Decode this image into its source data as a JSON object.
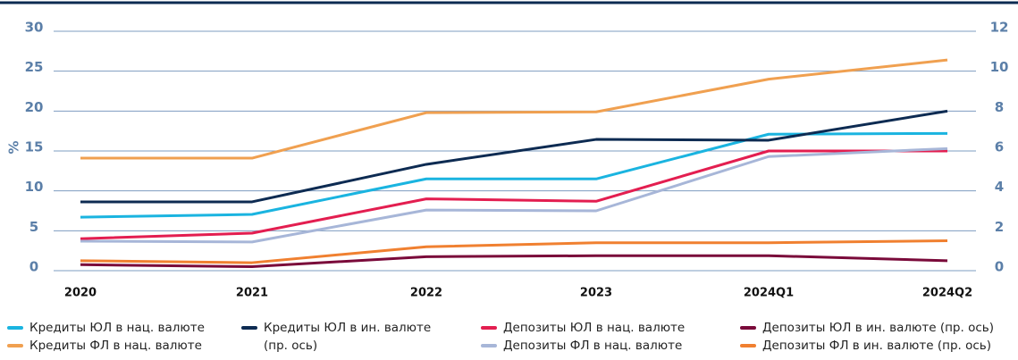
{
  "chart_data": {
    "type": "line",
    "ylabel": "%",
    "categories": [
      "2020",
      "2021",
      "2022",
      "2023",
      "2024Q1",
      "2024Q2"
    ],
    "ylim": [
      0,
      30
    ],
    "yticks": [
      0,
      5,
      10,
      15,
      20,
      25,
      30
    ],
    "y2lim": [
      0,
      12
    ],
    "y2ticks": [
      0,
      2,
      4,
      6,
      8,
      10,
      12
    ],
    "grid": true,
    "series": [
      {
        "name": "Кредиты ЮЛ в нац. валюте",
        "color": "#1ab4e0",
        "values": [
          6.7,
          7.05,
          11.5,
          11.5,
          17.1,
          17.2
        ]
      },
      {
        "name": "Кредиты ЮЛ в ин. валюте (пр. ось)",
        "color": "#0d2b52",
        "axis": "y2",
        "values": [
          3.45,
          3.45,
          5.33,
          6.58,
          6.54,
          8.0
        ]
      },
      {
        "name": "Депозиты ЮЛ в нац. валюте",
        "color": "#e31e50",
        "values": [
          4.0,
          4.7,
          9.0,
          8.7,
          15.0,
          15.0
        ]
      },
      {
        "name": "Депозиты ЮЛ в ин. валюте (пр. ось)",
        "color": "#7a0a3a",
        "axis": "y2",
        "values": [
          0.3,
          0.2,
          0.7,
          0.75,
          0.75,
          0.5
        ]
      },
      {
        "name": "Кредиты ФЛ в нац. валюте",
        "color": "#f0a050",
        "values": [
          14.1,
          14.1,
          19.8,
          19.9,
          24.0,
          26.4
        ]
      },
      {
        "name": "Депозиты ФЛ в нац. валюте",
        "color": "#a7b6d8",
        "values": [
          3.7,
          3.6,
          7.6,
          7.5,
          14.3,
          15.3
        ]
      },
      {
        "name": "Депозиты ФЛ в ин. валюте (пр. ось)",
        "color": "#f08030",
        "axis": "y2",
        "values": [
          0.5,
          0.4,
          1.2,
          1.4,
          1.4,
          1.5
        ]
      }
    ]
  }
}
